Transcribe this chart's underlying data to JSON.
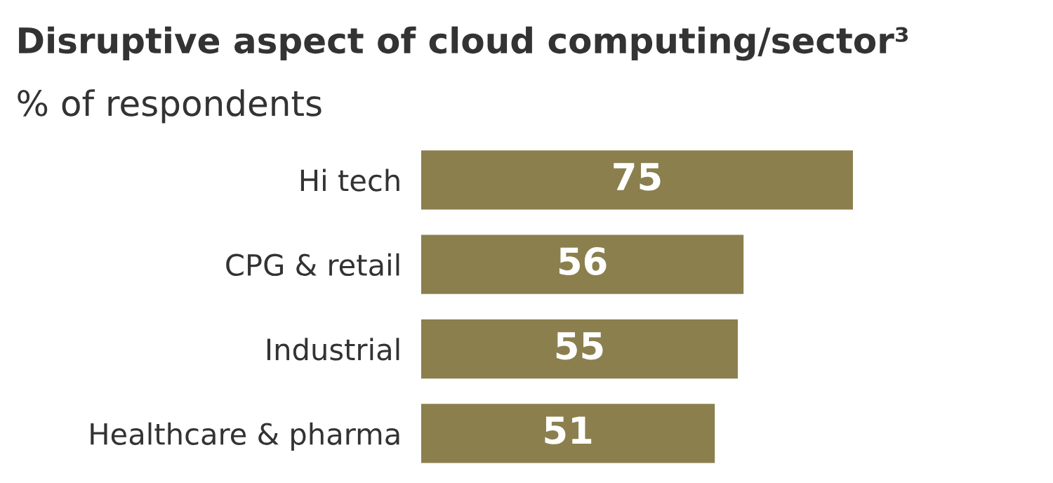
{
  "chart_data": {
    "type": "bar",
    "orientation": "horizontal",
    "title": "Disruptive aspect of cloud computing/sector³",
    "subtitle": "% of respondents",
    "categories": [
      "Hi tech",
      "CPG & retail",
      "Industrial",
      "Healthcare & pharma"
    ],
    "values": [
      75,
      56,
      55,
      51
    ],
    "color": "#8b7f4e",
    "data_labels": true
  }
}
